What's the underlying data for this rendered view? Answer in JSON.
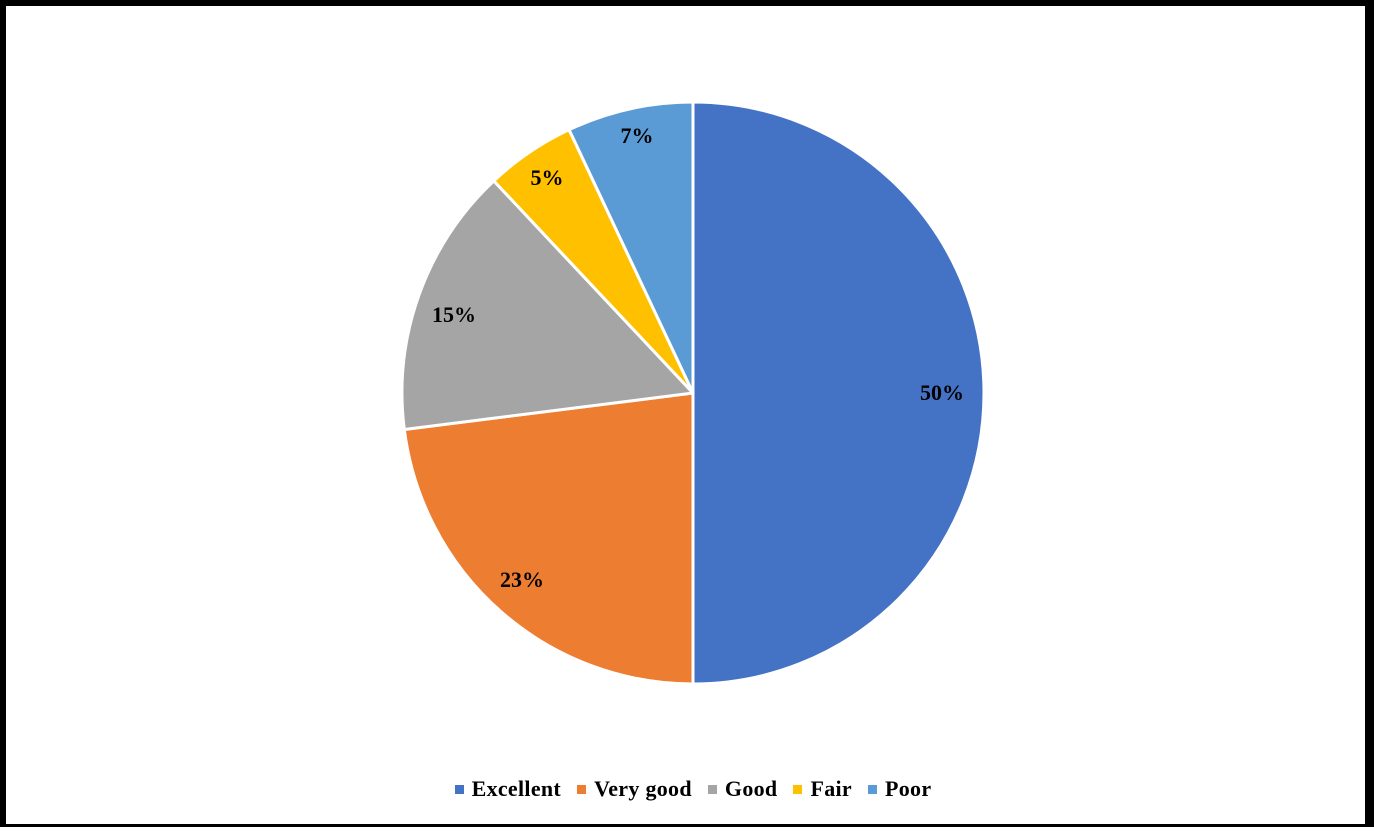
{
  "chart_data": {
    "type": "pie",
    "title": "",
    "categories": [
      "Excellent",
      "Very good",
      "Good",
      "Fair",
      "Poor"
    ],
    "values": [
      50,
      23,
      15,
      5,
      7
    ],
    "labels": [
      "50%",
      "23%",
      "15%",
      "5%",
      "7%"
    ],
    "colors": [
      "#4472C4",
      "#ED7D31",
      "#A5A5A5",
      "#FFC000",
      "#5B9BD5"
    ],
    "start_angle": "12 o'clock",
    "direction": "clockwise",
    "legend": "bottom-center"
  }
}
